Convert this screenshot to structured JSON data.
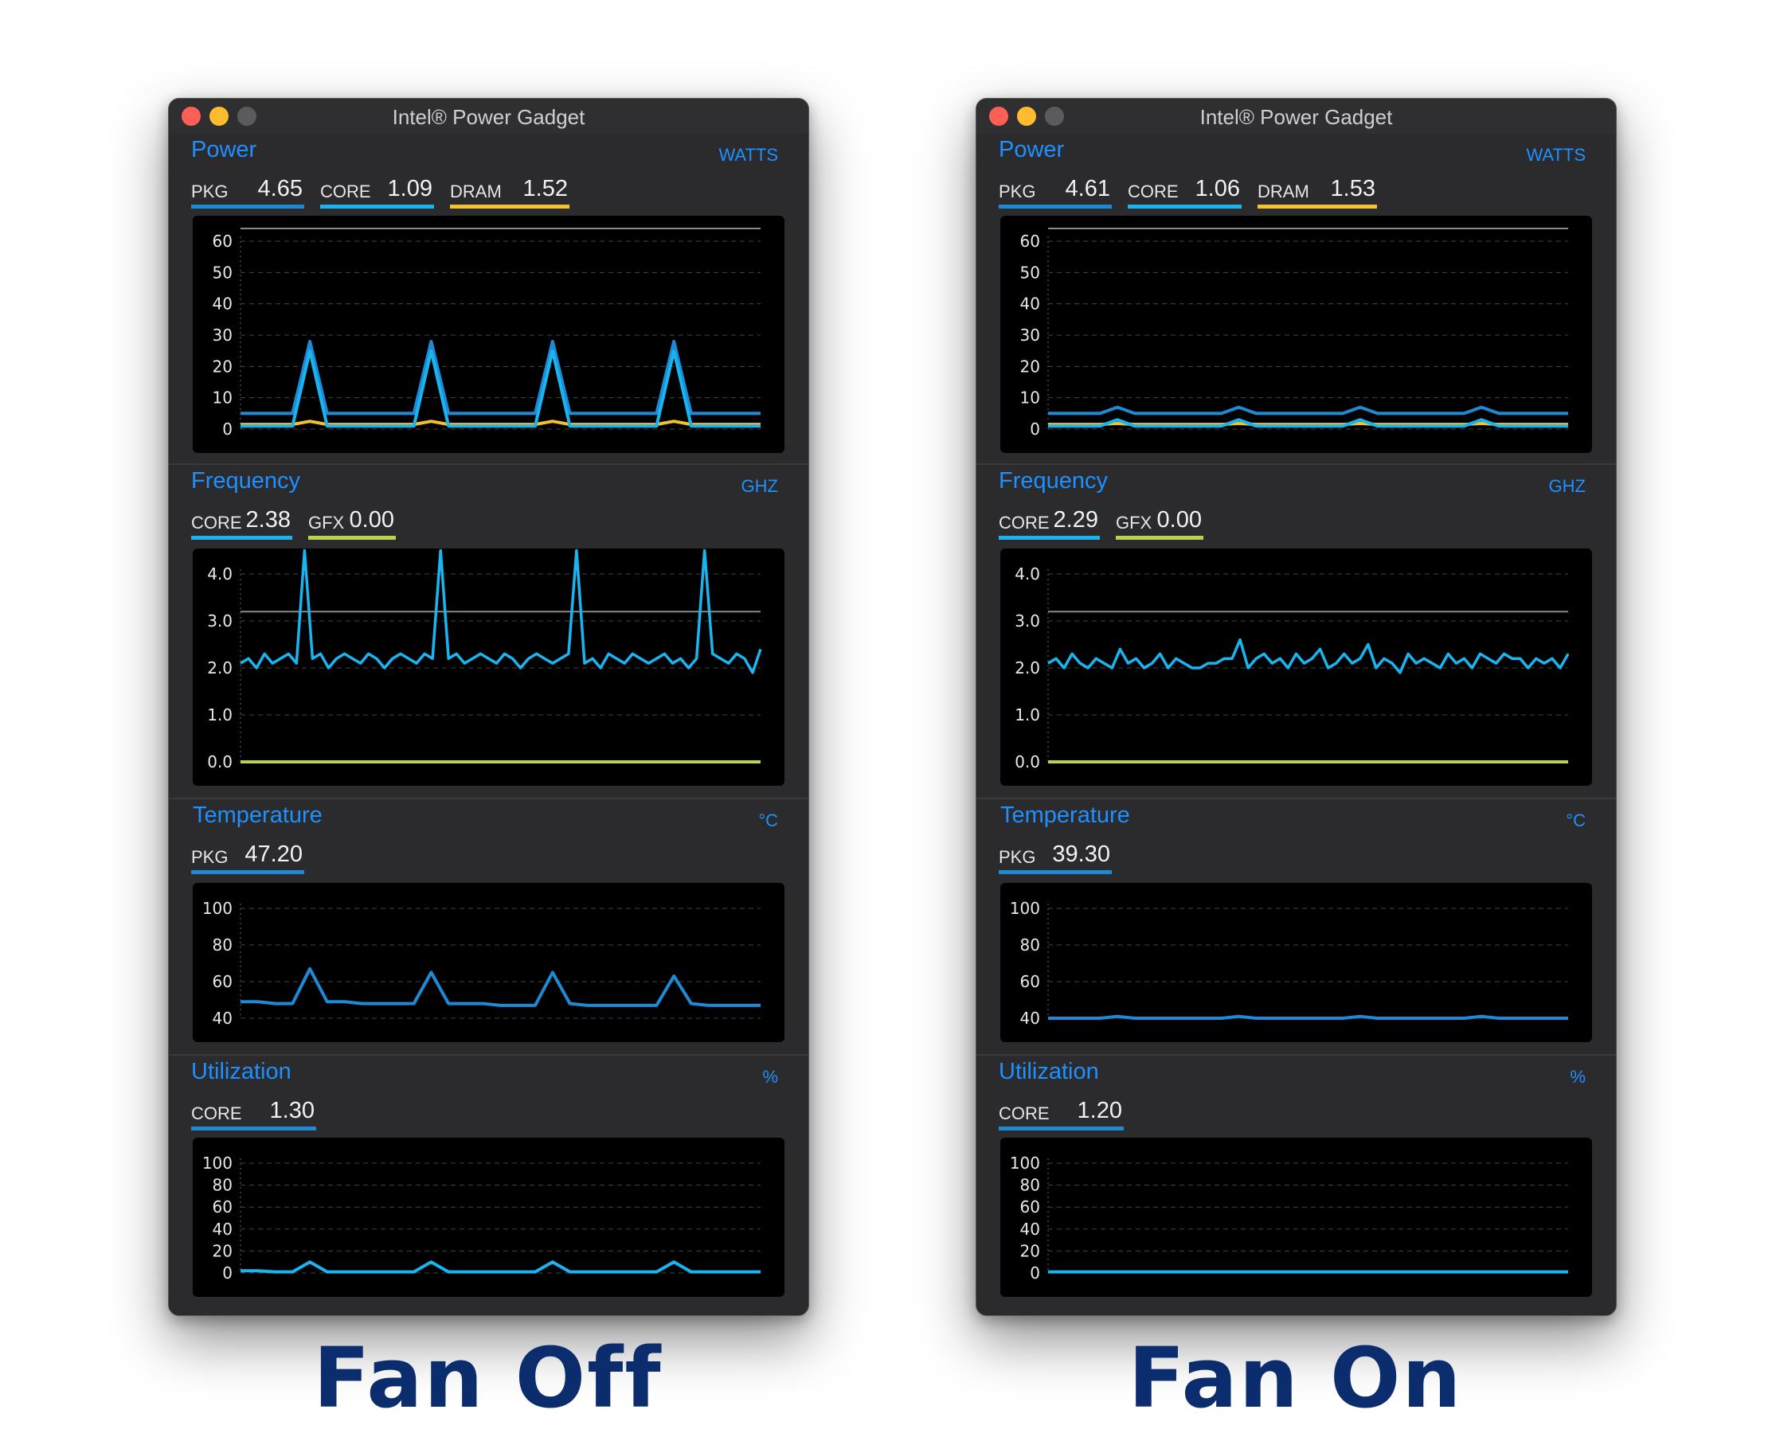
{
  "windows": [
    {
      "id": "left",
      "title": "Intel® Power Gadget",
      "caption": "Fan Off",
      "power": {
        "title": "Power",
        "unit": "WATTS",
        "pkg": {
          "label": "PKG",
          "value": "4.65"
        },
        "core": {
          "label": "CORE",
          "value": "1.09"
        },
        "dram": {
          "label": "DRAM",
          "value": "1.52"
        },
        "ticks": [
          "60",
          "50",
          "40",
          "30",
          "20",
          "10",
          "0"
        ]
      },
      "frequency": {
        "title": "Frequency",
        "unit": "GHZ",
        "core": {
          "label": "CORE",
          "value": "2.38"
        },
        "gfx": {
          "label": "GFX",
          "value": "0.00"
        },
        "ticks": [
          "4.0",
          "3.0",
          "2.0",
          "1.0",
          "0.0"
        ]
      },
      "temperature": {
        "title": "Temperature",
        "unit": "°C",
        "pkg": {
          "label": "PKG",
          "value": "47.20"
        },
        "ticks": [
          "100",
          "80",
          "60",
          "40"
        ]
      },
      "utilization": {
        "title": "Utilization",
        "unit": "%",
        "core": {
          "label": "CORE",
          "value": "1.30"
        },
        "ticks": [
          "100",
          "80",
          "60",
          "40",
          "20",
          "0"
        ]
      }
    },
    {
      "id": "right",
      "title": "Intel® Power Gadget",
      "caption": "Fan On",
      "power": {
        "title": "Power",
        "unit": "WATTS",
        "pkg": {
          "label": "PKG",
          "value": "4.61"
        },
        "core": {
          "label": "CORE",
          "value": "1.06"
        },
        "dram": {
          "label": "DRAM",
          "value": "1.53"
        },
        "ticks": [
          "60",
          "50",
          "40",
          "30",
          "20",
          "10",
          "0"
        ]
      },
      "frequency": {
        "title": "Frequency",
        "unit": "GHZ",
        "core": {
          "label": "CORE",
          "value": "2.29"
        },
        "gfx": {
          "label": "GFX",
          "value": "0.00"
        },
        "ticks": [
          "4.0",
          "3.0",
          "2.0",
          "1.0",
          "0.0"
        ]
      },
      "temperature": {
        "title": "Temperature",
        "unit": "°C",
        "pkg": {
          "label": "PKG",
          "value": "39.30"
        },
        "ticks": [
          "100",
          "80",
          "60",
          "40"
        ]
      },
      "utilization": {
        "title": "Utilization",
        "unit": "%",
        "core": {
          "label": "CORE",
          "value": "1.20"
        },
        "ticks": [
          "100",
          "80",
          "60",
          "40",
          "20",
          "0"
        ]
      }
    }
  ],
  "colors": {
    "accent": "#1e90ff",
    "pkg_line": "#1e8ad6",
    "core_line": "#19b5f0",
    "dram_line": "#f2c12e",
    "gfx_line": "#b8d44a",
    "limit_line": "#8a8a8a",
    "grid": "#444444"
  },
  "chart_data": [
    {
      "type": "line",
      "window": "Fan Off",
      "title": "Power",
      "ylabel": "WATTS",
      "ylim": [
        0,
        60
      ],
      "series": [
        {
          "name": "PKG",
          "values": [
            5,
            5,
            5,
            5,
            28,
            5,
            5,
            5,
            5,
            5,
            5,
            28,
            5,
            5,
            5,
            5,
            5,
            5,
            28,
            5,
            5,
            5,
            5,
            5,
            5,
            28,
            5,
            5,
            5,
            5,
            5
          ]
        },
        {
          "name": "CORE",
          "values": [
            1,
            1,
            1,
            1,
            25,
            1,
            1,
            1,
            1,
            1,
            1,
            25,
            1,
            1,
            1,
            1,
            1,
            1,
            25,
            1,
            1,
            1,
            1,
            1,
            1,
            25,
            1,
            1,
            1,
            1,
            1
          ]
        },
        {
          "name": "DRAM",
          "values": [
            1.5,
            1.5,
            1.5,
            1.5,
            2.5,
            1.5,
            1.5,
            1.5,
            1.5,
            1.5,
            1.5,
            2.5,
            1.5,
            1.5,
            1.5,
            1.5,
            1.5,
            1.5,
            2.5,
            1.5,
            1.5,
            1.5,
            1.5,
            1.5,
            1.5,
            2.5,
            1.5,
            1.5,
            1.5,
            1.5,
            1.5
          ]
        }
      ]
    },
    {
      "type": "line",
      "window": "Fan Off",
      "title": "Frequency",
      "ylabel": "GHZ",
      "ylim": [
        0,
        4.6
      ],
      "series": [
        {
          "name": "CORE",
          "values": [
            2.1,
            2.2,
            2.0,
            2.3,
            2.1,
            2.2,
            2.3,
            2.1,
            4.5,
            2.2,
            2.3,
            2.0,
            2.2,
            2.3,
            2.2,
            2.1,
            2.3,
            2.2,
            2.0,
            2.2,
            2.3,
            2.2,
            2.1,
            2.3,
            2.2,
            4.5,
            2.2,
            2.3,
            2.1,
            2.2,
            2.3,
            2.2,
            2.1,
            2.3,
            2.2,
            2.0,
            2.2,
            2.3,
            2.2,
            2.1,
            2.2,
            2.3,
            4.5,
            2.1,
            2.2,
            2.0,
            2.3,
            2.2,
            2.1,
            2.3,
            2.2,
            2.1,
            2.2,
            2.3,
            2.1,
            2.2,
            2.0,
            2.2,
            4.5,
            2.3,
            2.2,
            2.1,
            2.3,
            2.2,
            1.9,
            2.4
          ]
        },
        {
          "name": "GFX",
          "values": [
            0,
            0
          ]
        }
      ]
    },
    {
      "type": "line",
      "window": "Fan Off",
      "title": "Temperature",
      "ylabel": "°C",
      "ylim": [
        38,
        100
      ],
      "series": [
        {
          "name": "PKG",
          "values": [
            49,
            49,
            48,
            48,
            67,
            49,
            49,
            48,
            48,
            48,
            48,
            65,
            48,
            48,
            48,
            47,
            47,
            47,
            65,
            48,
            47,
            47,
            47,
            47,
            47,
            63,
            48,
            47,
            47,
            47,
            47
          ]
        }
      ]
    },
    {
      "type": "line",
      "window": "Fan Off",
      "title": "Utilization",
      "ylabel": "%",
      "ylim": [
        0,
        100
      ],
      "series": [
        {
          "name": "CORE",
          "values": [
            2,
            2,
            1,
            1,
            10,
            1,
            1,
            1,
            1,
            1,
            1,
            10,
            1,
            1,
            1,
            1,
            1,
            1,
            10,
            1,
            1,
            1,
            1,
            1,
            1,
            10,
            1,
            1,
            1,
            1,
            1
          ]
        }
      ]
    },
    {
      "type": "line",
      "window": "Fan On",
      "title": "Power",
      "ylabel": "WATTS",
      "ylim": [
        0,
        60
      ],
      "series": [
        {
          "name": "PKG",
          "values": [
            5,
            5,
            5,
            5,
            7,
            5,
            5,
            5,
            5,
            5,
            5,
            7,
            5,
            5,
            5,
            5,
            5,
            5,
            7,
            5,
            5,
            5,
            5,
            5,
            5,
            7,
            5,
            5,
            5,
            5,
            5
          ]
        },
        {
          "name": "CORE",
          "values": [
            1,
            1,
            1,
            1,
            3,
            1,
            1,
            1,
            1,
            1,
            1,
            3,
            1,
            1,
            1,
            1,
            1,
            1,
            3,
            1,
            1,
            1,
            1,
            1,
            1,
            3,
            1,
            1,
            1,
            1,
            1
          ]
        },
        {
          "name": "DRAM",
          "values": [
            1.5,
            1.5,
            1.5,
            1.5,
            1.8,
            1.5,
            1.5,
            1.5,
            1.5,
            1.5,
            1.5,
            1.8,
            1.5,
            1.5,
            1.5,
            1.5,
            1.5,
            1.5,
            1.8,
            1.5,
            1.5,
            1.5,
            1.5,
            1.5,
            1.5,
            1.8,
            1.5,
            1.5,
            1.5,
            1.5,
            1.5
          ]
        }
      ]
    },
    {
      "type": "line",
      "window": "Fan On",
      "title": "Frequency",
      "ylabel": "GHZ",
      "ylim": [
        0,
        4.6
      ],
      "series": [
        {
          "name": "CORE",
          "values": [
            2.1,
            2.2,
            2.0,
            2.3,
            2.1,
            2.0,
            2.2,
            2.1,
            2.0,
            2.4,
            2.1,
            2.2,
            2.0,
            2.1,
            2.3,
            2.0,
            2.2,
            2.1,
            2.0,
            2.0,
            2.1,
            2.1,
            2.2,
            2.2,
            2.6,
            2.0,
            2.2,
            2.3,
            2.1,
            2.2,
            2.0,
            2.3,
            2.1,
            2.2,
            2.4,
            2.0,
            2.1,
            2.3,
            2.1,
            2.2,
            2.5,
            2.0,
            2.2,
            2.1,
            1.9,
            2.3,
            2.1,
            2.2,
            2.1,
            2.0,
            2.3,
            2.1,
            2.2,
            2.0,
            2.3,
            2.2,
            2.1,
            2.3,
            2.2,
            2.2,
            2.0,
            2.2,
            2.1,
            2.2,
            2.0,
            2.3
          ]
        },
        {
          "name": "GFX",
          "values": [
            0,
            0
          ]
        }
      ]
    },
    {
      "type": "line",
      "window": "Fan On",
      "title": "Temperature",
      "ylabel": "°C",
      "ylim": [
        38,
        100
      ],
      "series": [
        {
          "name": "PKG",
          "values": [
            40,
            40,
            40,
            40,
            41,
            40,
            40,
            40,
            40,
            40,
            40,
            41,
            40,
            40,
            40,
            40,
            40,
            40,
            41,
            40,
            40,
            40,
            40,
            40,
            40,
            41,
            40,
            40,
            40,
            40,
            40
          ]
        }
      ]
    },
    {
      "type": "line",
      "window": "Fan On",
      "title": "Utilization",
      "ylabel": "%",
      "ylim": [
        0,
        100
      ],
      "series": [
        {
          "name": "CORE",
          "values": [
            1,
            1,
            1,
            1,
            1,
            1,
            1,
            1,
            1,
            1,
            1,
            1,
            1,
            1,
            1,
            1,
            1,
            1,
            1,
            1,
            1,
            1,
            1,
            1,
            1,
            1,
            1,
            1,
            1,
            1,
            1
          ]
        }
      ]
    }
  ]
}
